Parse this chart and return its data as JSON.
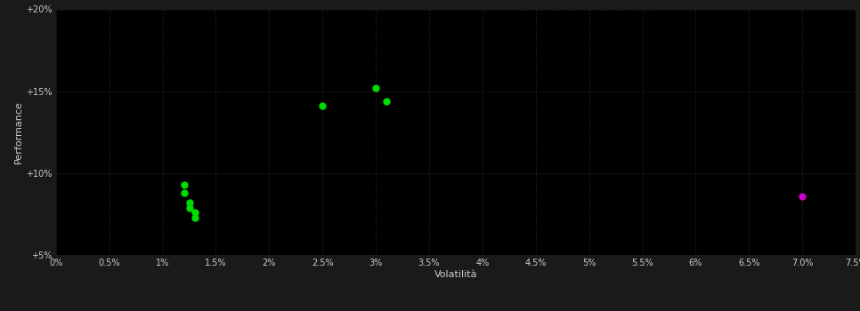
{
  "background_color": "#1a1a1a",
  "plot_bg_color": "#000000",
  "grid_color": "#2a2a2a",
  "grid_style": ":",
  "xlabel": "Volatilità",
  "ylabel": "Performance",
  "xlabel_color": "#cccccc",
  "ylabel_color": "#cccccc",
  "tick_color": "#cccccc",
  "xlim": [
    0.0,
    0.075
  ],
  "ylim": [
    0.05,
    0.2
  ],
  "xticks": [
    0.0,
    0.005,
    0.01,
    0.015,
    0.02,
    0.025,
    0.03,
    0.035,
    0.04,
    0.045,
    0.05,
    0.055,
    0.06,
    0.065,
    0.07,
    0.075
  ],
  "yticks": [
    0.05,
    0.1,
    0.15,
    0.2
  ],
  "ytick_labels": [
    "+5%",
    "+10%",
    "+15%",
    "+20%"
  ],
  "green_points": [
    [
      0.012,
      0.093
    ],
    [
      0.012,
      0.088
    ],
    [
      0.0125,
      0.082
    ],
    [
      0.0125,
      0.079
    ],
    [
      0.013,
      0.076
    ],
    [
      0.013,
      0.073
    ],
    [
      0.025,
      0.141
    ],
    [
      0.03,
      0.152
    ],
    [
      0.031,
      0.144
    ]
  ],
  "magenta_points": [
    [
      0.07,
      0.086
    ]
  ],
  "point_size": 25,
  "green_color": "#00dd00",
  "magenta_color": "#cc00cc"
}
